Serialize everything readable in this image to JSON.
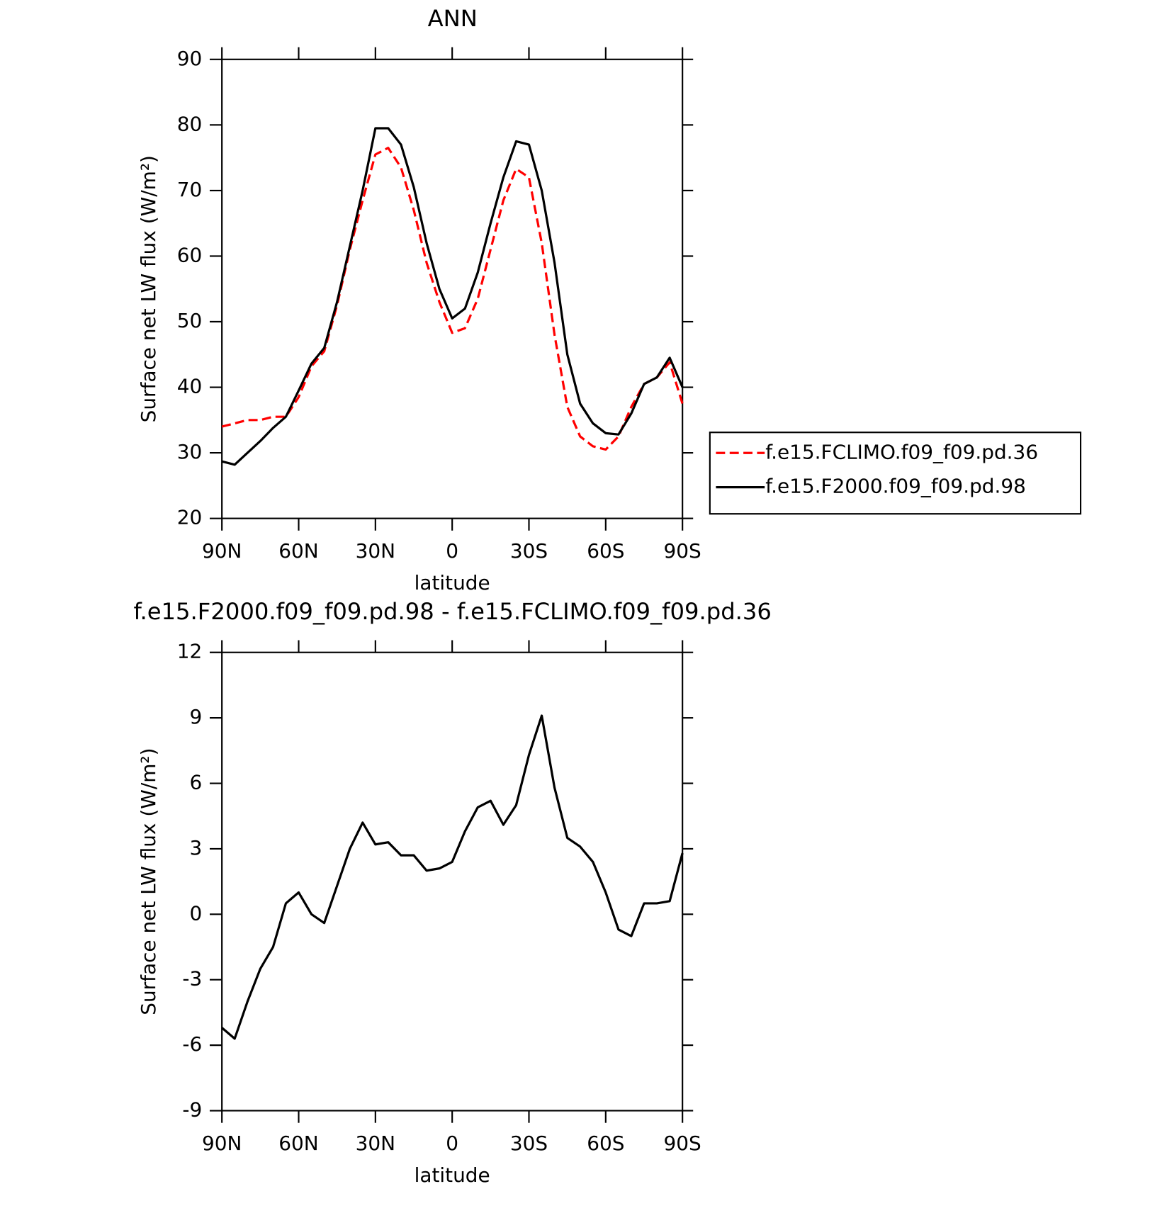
{
  "chart_data": [
    {
      "type": "line",
      "title": "ANN",
      "xlabel": "latitude",
      "ylabel": "Surface net LW flux (W/m²)",
      "x": [
        90,
        85,
        80,
        75,
        70,
        65,
        60,
        55,
        50,
        45,
        40,
        35,
        30,
        25,
        20,
        15,
        10,
        5,
        0,
        -5,
        -10,
        -15,
        -20,
        -25,
        -30,
        -35,
        -40,
        -45,
        -50,
        -55,
        -60,
        -65,
        -70,
        -75,
        -80,
        -85,
        -90
      ],
      "xlim": [
        90,
        -90
      ],
      "xticks": [
        {
          "value": 90,
          "label": "90N"
        },
        {
          "value": 60,
          "label": "60N"
        },
        {
          "value": 30,
          "label": "30N"
        },
        0,
        {
          "value": -30,
          "label": "30S"
        },
        {
          "value": -60,
          "label": "60S"
        },
        {
          "value": -90,
          "label": "90S"
        }
      ],
      "ylim": [
        20,
        90
      ],
      "yticks": [
        20,
        30,
        40,
        50,
        60,
        70,
        80,
        90
      ],
      "legend": "outside-right",
      "series": [
        {
          "name": "f.e15.FCLIMO.f09_f09.pd.36",
          "color": "#ff0000",
          "dash": true,
          "values": [
            34,
            34.5,
            35,
            35,
            35.5,
            35.5,
            38.5,
            43.2,
            45.5,
            52.5,
            61,
            68.5,
            75.5,
            76.5,
            73.5,
            67,
            59,
            53,
            48.3,
            49,
            53.5,
            61,
            68.5,
            73.3,
            72,
            62,
            48,
            37,
            32.5,
            31,
            30.5,
            32.5,
            37,
            40.5,
            41.5,
            43.8,
            37.5
          ]
        },
        {
          "name": "f.e15.F2000.f09_f09.pd.98",
          "color": "#000000",
          "dash": false,
          "values": [
            28.7,
            28.2,
            30,
            31.8,
            33.8,
            35.5,
            39.5,
            43.6,
            46,
            53,
            61.5,
            70,
            79.5,
            79.5,
            77,
            70.5,
            62,
            55,
            50.5,
            52,
            57.5,
            65,
            72,
            77.5,
            77,
            70,
            59,
            45,
            37.5,
            34.5,
            33,
            32.8,
            36,
            40.5,
            41.5,
            44.5,
            40
          ]
        }
      ]
    },
    {
      "type": "line",
      "title": "f.e15.F2000.f09_f09.pd.98 - f.e15.FCLIMO.f09_f09.pd.36",
      "xlabel": "latitude",
      "ylabel": "Surface net LW flux (W/m²)",
      "x": [
        90,
        85,
        80,
        75,
        70,
        65,
        60,
        55,
        50,
        45,
        40,
        35,
        30,
        25,
        20,
        15,
        10,
        5,
        0,
        -5,
        -10,
        -15,
        -20,
        -25,
        -30,
        -35,
        -40,
        -45,
        -50,
        -55,
        -60,
        -65,
        -70,
        -75,
        -80,
        -85,
        -90
      ],
      "xlim": [
        90,
        -90
      ],
      "xticks": [
        {
          "value": 90,
          "label": "90N"
        },
        {
          "value": 60,
          "label": "60N"
        },
        {
          "value": 30,
          "label": "30N"
        },
        0,
        {
          "value": -30,
          "label": "30S"
        },
        {
          "value": -60,
          "label": "60S"
        },
        {
          "value": -90,
          "label": "90S"
        }
      ],
      "ylim": [
        -9,
        12
      ],
      "yticks": [
        -9,
        -6,
        -3,
        0,
        3,
        6,
        9,
        12
      ],
      "color": "#000000",
      "values": [
        -5.2,
        -5.7,
        -4,
        -2.5,
        -1.5,
        0.5,
        1,
        0,
        -0.4,
        1.3,
        3,
        4.2,
        3.2,
        3.3,
        2.7,
        2.7,
        2,
        2.1,
        2.4,
        3.8,
        4.9,
        5.2,
        4.1,
        5,
        7.3,
        9.1,
        5.8,
        3.5,
        3.1,
        2.4,
        1,
        -0.7,
        -1,
        0.5,
        0.5,
        0.6,
        2.8
      ]
    }
  ]
}
